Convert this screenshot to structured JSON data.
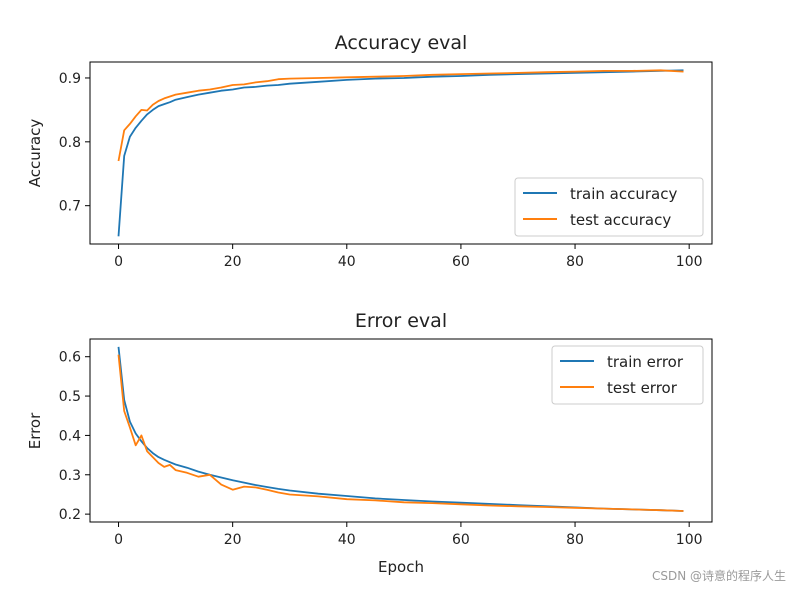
{
  "watermark": "CSDN @诗意的程序人生",
  "colors": {
    "train": "#1f77b4",
    "test": "#ff7f0e"
  },
  "chart_data": [
    {
      "type": "line",
      "title": "Accuracy eval",
      "xlabel": "",
      "ylabel": "Accuracy",
      "xlim": [
        -5,
        104
      ],
      "ylim": [
        0.64,
        0.925
      ],
      "xticks": [
        0,
        20,
        40,
        60,
        80,
        100
      ],
      "yticks": [
        0.7,
        0.8,
        0.9
      ],
      "xtick_labels": [
        "0",
        "20",
        "40",
        "60",
        "80",
        "100"
      ],
      "ytick_labels": [
        "0.7",
        "0.8",
        "0.9"
      ],
      "legend_position": "lower-right",
      "x": [
        0,
        1,
        2,
        3,
        4,
        5,
        6,
        7,
        8,
        9,
        10,
        12,
        14,
        16,
        18,
        20,
        22,
        24,
        26,
        28,
        30,
        35,
        40,
        45,
        50,
        55,
        60,
        65,
        70,
        75,
        80,
        85,
        90,
        95,
        99
      ],
      "series": [
        {
          "name": "train accuracy",
          "color": "#1f77b4",
          "values": [
            0.652,
            0.778,
            0.808,
            0.822,
            0.833,
            0.843,
            0.85,
            0.856,
            0.859,
            0.862,
            0.866,
            0.87,
            0.874,
            0.877,
            0.88,
            0.882,
            0.885,
            0.886,
            0.888,
            0.889,
            0.891,
            0.894,
            0.897,
            0.899,
            0.9,
            0.902,
            0.903,
            0.905,
            0.906,
            0.907,
            0.908,
            0.909,
            0.91,
            0.911,
            0.912
          ]
        },
        {
          "name": "test accuracy",
          "color": "#ff7f0e",
          "values": [
            0.77,
            0.818,
            0.828,
            0.84,
            0.85,
            0.849,
            0.858,
            0.864,
            0.868,
            0.871,
            0.874,
            0.877,
            0.88,
            0.882,
            0.885,
            0.889,
            0.89,
            0.893,
            0.895,
            0.898,
            0.899,
            0.9,
            0.901,
            0.902,
            0.903,
            0.905,
            0.906,
            0.907,
            0.908,
            0.909,
            0.91,
            0.911,
            0.911,
            0.912,
            0.91
          ]
        }
      ]
    },
    {
      "type": "line",
      "title": "Error eval",
      "xlabel": "Epoch",
      "ylabel": "Error",
      "xlim": [
        -5,
        104
      ],
      "ylim": [
        0.18,
        0.645
      ],
      "xticks": [
        0,
        20,
        40,
        60,
        80,
        100
      ],
      "yticks": [
        0.2,
        0.3,
        0.4,
        0.5,
        0.6
      ],
      "xtick_labels": [
        "0",
        "20",
        "40",
        "60",
        "80",
        "100"
      ],
      "ytick_labels": [
        "0.2",
        "0.3",
        "0.4",
        "0.5",
        "0.6"
      ],
      "legend_position": "upper-right",
      "x": [
        0,
        1,
        2,
        3,
        4,
        5,
        6,
        7,
        8,
        9,
        10,
        12,
        14,
        16,
        18,
        20,
        22,
        24,
        26,
        28,
        30,
        35,
        40,
        45,
        50,
        55,
        60,
        65,
        70,
        75,
        80,
        85,
        90,
        95,
        99
      ],
      "series": [
        {
          "name": "train error",
          "color": "#1f77b4",
          "values": [
            0.625,
            0.49,
            0.435,
            0.405,
            0.385,
            0.368,
            0.355,
            0.345,
            0.338,
            0.332,
            0.326,
            0.318,
            0.308,
            0.3,
            0.293,
            0.286,
            0.28,
            0.274,
            0.269,
            0.264,
            0.26,
            0.252,
            0.246,
            0.24,
            0.236,
            0.232,
            0.229,
            0.226,
            0.223,
            0.22,
            0.217,
            0.214,
            0.212,
            0.21,
            0.208
          ]
        },
        {
          "name": "test error",
          "color": "#ff7f0e",
          "values": [
            0.605,
            0.462,
            0.42,
            0.375,
            0.4,
            0.36,
            0.345,
            0.33,
            0.32,
            0.325,
            0.312,
            0.305,
            0.295,
            0.3,
            0.275,
            0.262,
            0.27,
            0.268,
            0.262,
            0.255,
            0.25,
            0.245,
            0.238,
            0.235,
            0.23,
            0.228,
            0.225,
            0.222,
            0.22,
            0.218,
            0.216,
            0.214,
            0.212,
            0.21,
            0.208
          ]
        }
      ]
    }
  ]
}
